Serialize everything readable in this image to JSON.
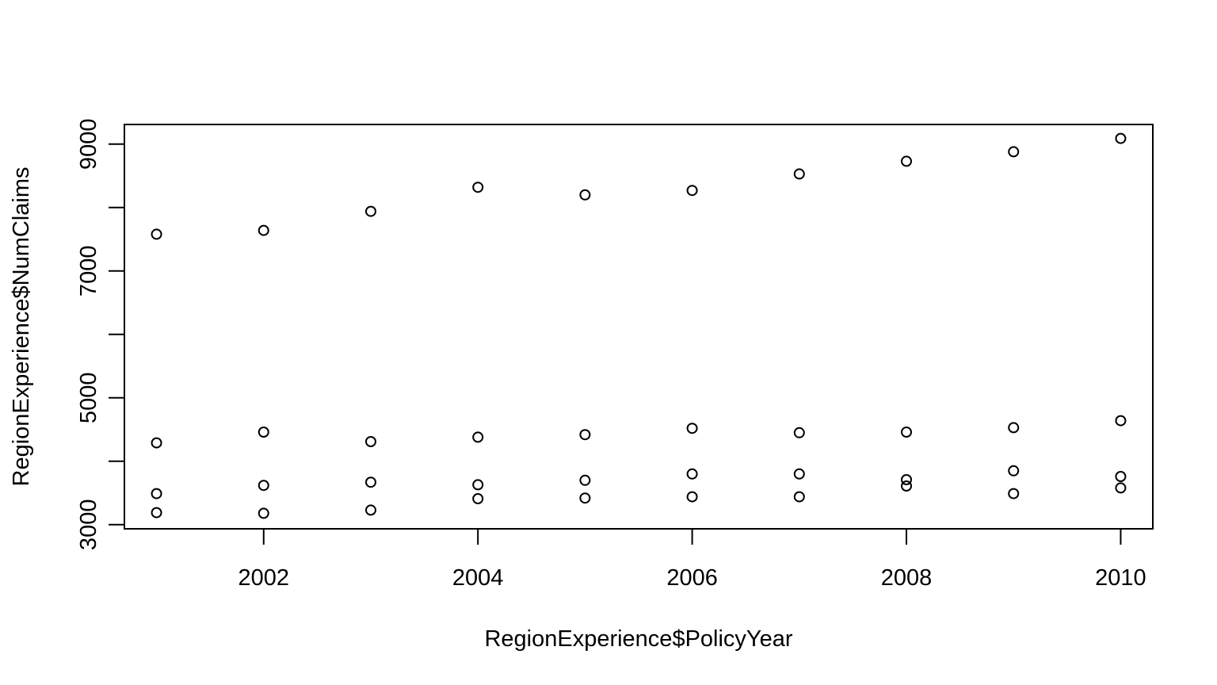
{
  "chart_data": {
    "type": "scatter",
    "title": "",
    "xlabel": "RegionExperience$PolicyYear",
    "ylabel": "RegionExperience$NumClaims",
    "xlim": [
      2000.7,
      2010.3
    ],
    "ylim": [
      2935,
      9310
    ],
    "x_ticks": [
      2002,
      2004,
      2006,
      2008,
      2010
    ],
    "x_tick_labels": [
      "2002",
      "2004",
      "2006",
      "2008",
      "2010"
    ],
    "y_ticks": [
      3000,
      4000,
      5000,
      6000,
      7000,
      8000,
      9000
    ],
    "y_tick_labels": [
      "3000",
      "",
      "5000",
      "",
      "7000",
      "",
      "9000"
    ],
    "grid": false,
    "legend": "none",
    "point_style": "open-circle",
    "colors": {
      "points": "#000000",
      "axes": "#000000",
      "background": "#ffffff"
    },
    "points": [
      {
        "x": 2001,
        "y": 7580
      },
      {
        "x": 2001,
        "y": 4290
      },
      {
        "x": 2001,
        "y": 3490
      },
      {
        "x": 2001,
        "y": 3190
      },
      {
        "x": 2002,
        "y": 7640
      },
      {
        "x": 2002,
        "y": 4460
      },
      {
        "x": 2002,
        "y": 3620
      },
      {
        "x": 2002,
        "y": 3180
      },
      {
        "x": 2003,
        "y": 7940
      },
      {
        "x": 2003,
        "y": 4310
      },
      {
        "x": 2003,
        "y": 3670
      },
      {
        "x": 2003,
        "y": 3230
      },
      {
        "x": 2004,
        "y": 8320
      },
      {
        "x": 2004,
        "y": 4380
      },
      {
        "x": 2004,
        "y": 3630
      },
      {
        "x": 2004,
        "y": 3410
      },
      {
        "x": 2005,
        "y": 8200
      },
      {
        "x": 2005,
        "y": 4420
      },
      {
        "x": 2005,
        "y": 3700
      },
      {
        "x": 2005,
        "y": 3420
      },
      {
        "x": 2006,
        "y": 8270
      },
      {
        "x": 2006,
        "y": 4520
      },
      {
        "x": 2006,
        "y": 3800
      },
      {
        "x": 2006,
        "y": 3440
      },
      {
        "x": 2007,
        "y": 8530
      },
      {
        "x": 2007,
        "y": 4450
      },
      {
        "x": 2007,
        "y": 3800
      },
      {
        "x": 2007,
        "y": 3440
      },
      {
        "x": 2008,
        "y": 8730
      },
      {
        "x": 2008,
        "y": 4460
      },
      {
        "x": 2008,
        "y": 3710
      },
      {
        "x": 2008,
        "y": 3610
      },
      {
        "x": 2009,
        "y": 8880
      },
      {
        "x": 2009,
        "y": 4530
      },
      {
        "x": 2009,
        "y": 3850
      },
      {
        "x": 2009,
        "y": 3490
      },
      {
        "x": 2010,
        "y": 9090
      },
      {
        "x": 2010,
        "y": 4640
      },
      {
        "x": 2010,
        "y": 3760
      },
      {
        "x": 2010,
        "y": 3580
      }
    ]
  }
}
